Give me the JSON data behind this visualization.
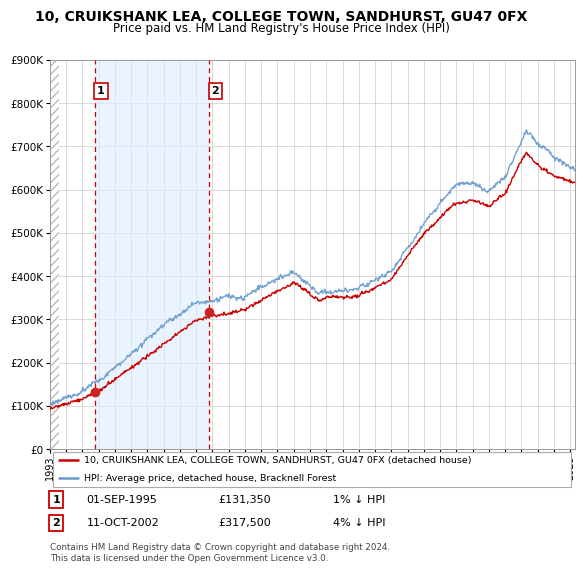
{
  "title": "10, CRUIKSHANK LEA, COLLEGE TOWN, SANDHURST, GU47 0FX",
  "subtitle": "Price paid vs. HM Land Registry's House Price Index (HPI)",
  "sale1_date": 1995.75,
  "sale1_price": 131350,
  "sale2_date": 2002.79,
  "sale2_price": 317500,
  "hpi_line_color": "#6699cc",
  "price_line_color": "#cc0000",
  "sale_dot_color": "#cc2222",
  "vline_color": "#cc0000",
  "shade_color": "#ddeeff",
  "hatch_color": "#cccccc",
  "legend_line1": "10, CRUIKSHANK LEA, COLLEGE TOWN, SANDHURST, GU47 0FX (detached house)",
  "legend_line2": "HPI: Average price, detached house, Bracknell Forest",
  "footer": "Contains HM Land Registry data © Crown copyright and database right 2024.\nThis data is licensed under the Open Government Licence v3.0.",
  "ylim_min": 0,
  "ylim_max": 900000,
  "xlim_min": 1993.0,
  "xlim_max": 2025.3,
  "npoints": 800
}
